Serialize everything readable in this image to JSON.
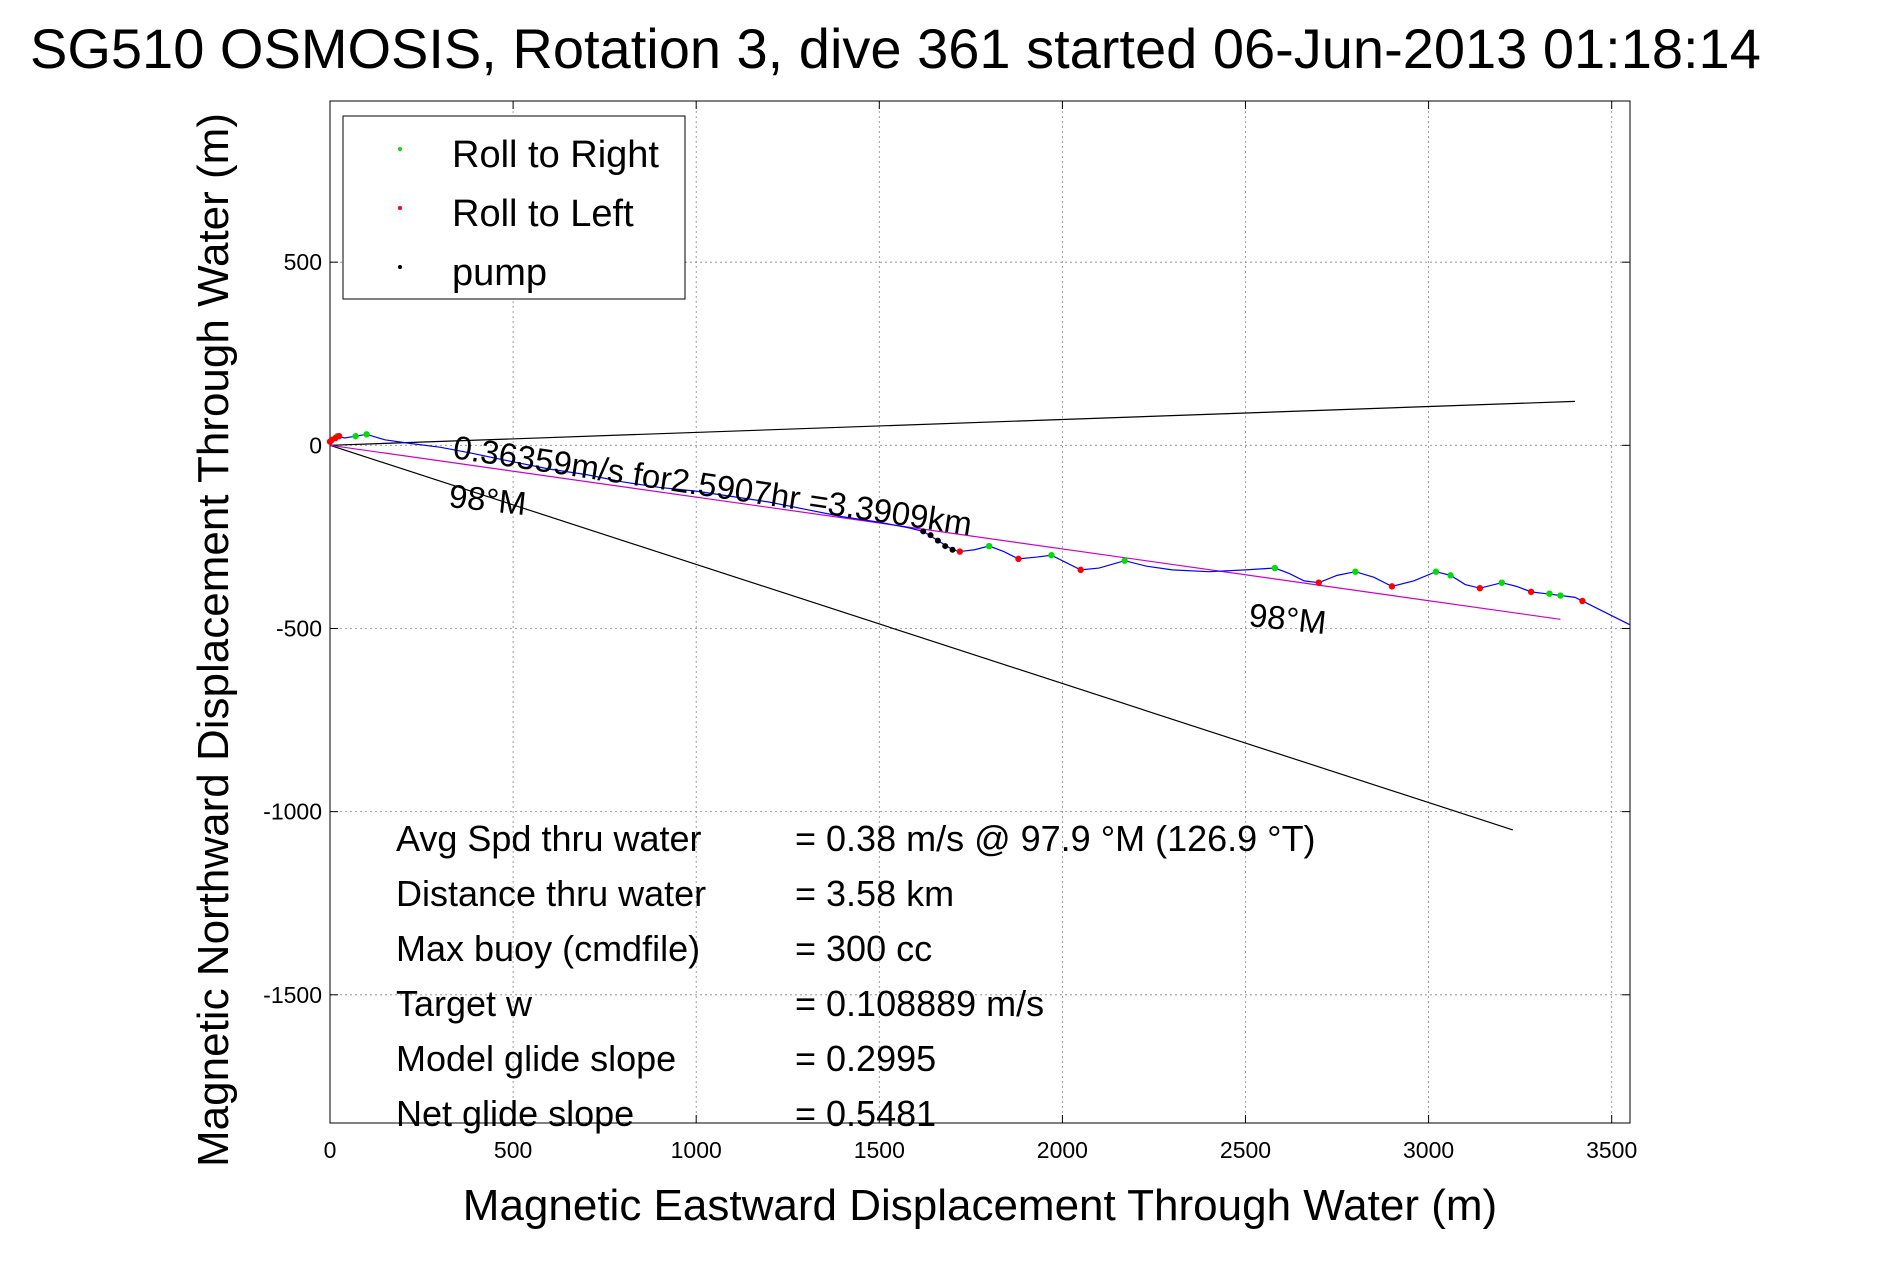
{
  "chart_data": {
    "type": "scatter",
    "title": "SG510 OSMOSIS, Rotation 3, dive 361 started 06-Jun-2013 01:18:14",
    "xlabel": "Magnetic Eastward Displacement Through Water (m)",
    "ylabel": "Magnetic Northward Displacement Through Water (m)",
    "xlim": [
      0,
      3550
    ],
    "ylim": [
      -1850,
      940
    ],
    "grid": true,
    "legend_position": "top-left",
    "x_ticks": [
      0,
      500,
      1000,
      1500,
      2000,
      2500,
      3000,
      3500
    ],
    "y_ticks": [
      500,
      0,
      -500,
      -1000,
      -1500
    ],
    "legend": [
      {
        "label": "Roll to Right",
        "color": "#00dd00"
      },
      {
        "label": "Roll to Left",
        "color": "#ff0000"
      },
      {
        "label": "pump",
        "color": "#000000"
      }
    ],
    "track": {
      "color": "#0000ff",
      "points": [
        [
          0,
          0
        ],
        [
          10,
          15
        ],
        [
          20,
          25
        ],
        [
          40,
          20
        ],
        [
          70,
          25
        ],
        [
          100,
          30
        ],
        [
          150,
          15
        ],
        [
          220,
          5
        ],
        [
          300,
          -5
        ],
        [
          380,
          -20
        ],
        [
          500,
          -45
        ],
        [
          600,
          -65
        ],
        [
          700,
          -80
        ],
        [
          800,
          -100
        ],
        [
          900,
          -115
        ],
        [
          1000,
          -125
        ],
        [
          1100,
          -140
        ],
        [
          1200,
          -155
        ],
        [
          1300,
          -175
        ],
        [
          1400,
          -195
        ],
        [
          1500,
          -210
        ],
        [
          1580,
          -225
        ],
        [
          1620,
          -235
        ],
        [
          1660,
          -260
        ],
        [
          1700,
          -285
        ],
        [
          1720,
          -290
        ],
        [
          1760,
          -285
        ],
        [
          1800,
          -275
        ],
        [
          1840,
          -290
        ],
        [
          1880,
          -310
        ],
        [
          1930,
          -305
        ],
        [
          1970,
          -300
        ],
        [
          2010,
          -320
        ],
        [
          2050,
          -340
        ],
        [
          2100,
          -335
        ],
        [
          2170,
          -315
        ],
        [
          2230,
          -330
        ],
        [
          2300,
          -340
        ],
        [
          2400,
          -345
        ],
        [
          2500,
          -340
        ],
        [
          2580,
          -335
        ],
        [
          2620,
          -350
        ],
        [
          2660,
          -370
        ],
        [
          2700,
          -375
        ],
        [
          2750,
          -355
        ],
        [
          2800,
          -345
        ],
        [
          2850,
          -360
        ],
        [
          2900,
          -385
        ],
        [
          2960,
          -370
        ],
        [
          3020,
          -345
        ],
        [
          3060,
          -355
        ],
        [
          3100,
          -380
        ],
        [
          3140,
          -390
        ],
        [
          3200,
          -375
        ],
        [
          3240,
          -385
        ],
        [
          3280,
          -400
        ],
        [
          3320,
          -405
        ],
        [
          3360,
          -410
        ],
        [
          3400,
          -415
        ],
        [
          3460,
          -445
        ],
        [
          3550,
          -490
        ]
      ]
    },
    "roll_right_points": [
      [
        20,
        25
      ],
      [
        70,
        25
      ],
      [
        100,
        30
      ],
      [
        1800,
        -275
      ],
      [
        1970,
        -300
      ],
      [
        2170,
        -315
      ],
      [
        2580,
        -335
      ],
      [
        2800,
        -345
      ],
      [
        3020,
        -345
      ],
      [
        3060,
        -355
      ],
      [
        3200,
        -375
      ],
      [
        3330,
        -405
      ],
      [
        3360,
        -410
      ]
    ],
    "roll_left_points": [
      [
        0,
        10
      ],
      [
        5,
        15
      ],
      [
        15,
        20
      ],
      [
        25,
        25
      ],
      [
        1720,
        -290
      ],
      [
        1880,
        -310
      ],
      [
        2050,
        -340
      ],
      [
        2700,
        -375
      ],
      [
        2900,
        -385
      ],
      [
        3140,
        -390
      ],
      [
        3280,
        -400
      ],
      [
        3420,
        -425
      ]
    ],
    "pump_points": [
      [
        1620,
        -235
      ],
      [
        1640,
        -245
      ],
      [
        1660,
        -260
      ],
      [
        1680,
        -275
      ],
      [
        1700,
        -285
      ]
    ],
    "reference_lines": [
      {
        "color": "#000000",
        "from": [
          0,
          0
        ],
        "to": [
          3400,
          120
        ]
      },
      {
        "color": "#000000",
        "from": [
          0,
          0
        ],
        "to": [
          3230,
          -1050
        ]
      },
      {
        "color": "#cc00cc",
        "from": [
          0,
          0
        ],
        "to": [
          3360,
          -475
        ]
      }
    ],
    "annotations": {
      "speed_line": "0.36359m/s for2.5907hr =3.3909km",
      "heading_a": "98°M",
      "heading_b": "98°M"
    },
    "stats": [
      {
        "label": "Avg Spd thru water",
        "value": "=  0.38 m/s @  97.9 °M (126.9 °T)"
      },
      {
        "label": "Distance thru water",
        "value": "=  3.58 km"
      },
      {
        "label": "Max buoy (cmdfile)",
        "value": "= 300 cc"
      },
      {
        "label": "Target w",
        "value": "= 0.108889 m/s"
      },
      {
        "label": "Model glide slope",
        "value": "= 0.2995"
      },
      {
        "label": "Net glide slope",
        "value": "= 0.5481"
      }
    ]
  }
}
